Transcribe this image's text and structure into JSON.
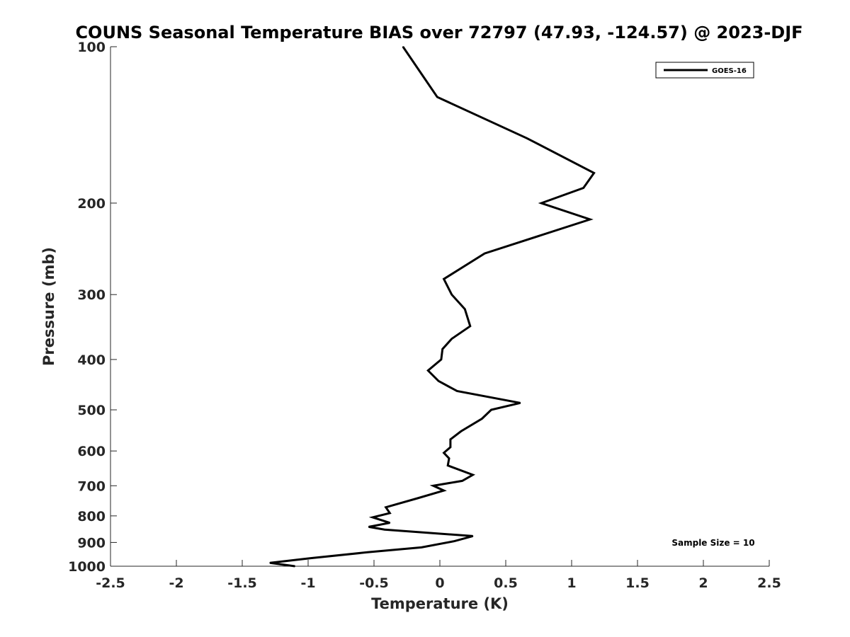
{
  "chart_data": {
    "type": "line",
    "title": "COUNS Seasonal Temperature BIAS over 72797 (47.93, -124.57) @ 2023-DJF",
    "xlabel": "Temperature (K)",
    "ylabel": "Pressure (mb)",
    "xlim": [
      -2.5,
      2.5
    ],
    "ylim": [
      100,
      1000
    ],
    "y_scale": "log",
    "y_reversed": true,
    "grid": false,
    "legend_position": "top-right",
    "x_ticks": [
      "-2.5",
      "-2",
      "-1.5",
      "-1",
      "-0.5",
      "0",
      "0.5",
      "1",
      "1.5",
      "2",
      "2.5"
    ],
    "y_ticks": [
      "100",
      "200",
      "300",
      "400",
      "500",
      "600",
      "700",
      "800",
      "900",
      "1000"
    ],
    "annotation": "Sample Size = 10",
    "series": [
      {
        "name": "GOES-16",
        "color": "#000000",
        "points": [
          [
            -0.28,
            100
          ],
          [
            -0.02,
            125
          ],
          [
            0.66,
            150
          ],
          [
            1.17,
            175
          ],
          [
            1.09,
            187
          ],
          [
            0.77,
            200
          ],
          [
            1.14,
            215
          ],
          [
            0.34,
            250
          ],
          [
            0.03,
            280
          ],
          [
            0.09,
            300
          ],
          [
            0.19,
            320
          ],
          [
            0.23,
            345
          ],
          [
            0.09,
            365
          ],
          [
            0.02,
            382
          ],
          [
            0.01,
            400
          ],
          [
            -0.09,
            420
          ],
          [
            -0.01,
            440
          ],
          [
            0.13,
            460
          ],
          [
            0.61,
            485
          ],
          [
            0.39,
            500
          ],
          [
            0.32,
            520
          ],
          [
            0.16,
            550
          ],
          [
            0.08,
            570
          ],
          [
            0.08,
            590
          ],
          [
            0.03,
            605
          ],
          [
            0.07,
            620
          ],
          [
            0.06,
            640
          ],
          [
            0.25,
            667
          ],
          [
            0.17,
            685
          ],
          [
            -0.05,
            700
          ],
          [
            0.03,
            715
          ],
          [
            -0.17,
            740
          ],
          [
            -0.41,
            770
          ],
          [
            -0.38,
            790
          ],
          [
            -0.51,
            805
          ],
          [
            -0.38,
            825
          ],
          [
            -0.54,
            840
          ],
          [
            -0.42,
            850
          ],
          [
            0.25,
            875
          ],
          [
            0.11,
            895
          ],
          [
            -0.14,
            920
          ],
          [
            -0.55,
            940
          ],
          [
            -0.98,
            965
          ],
          [
            -1.29,
            985
          ],
          [
            -1.1,
            1000
          ]
        ]
      }
    ]
  }
}
